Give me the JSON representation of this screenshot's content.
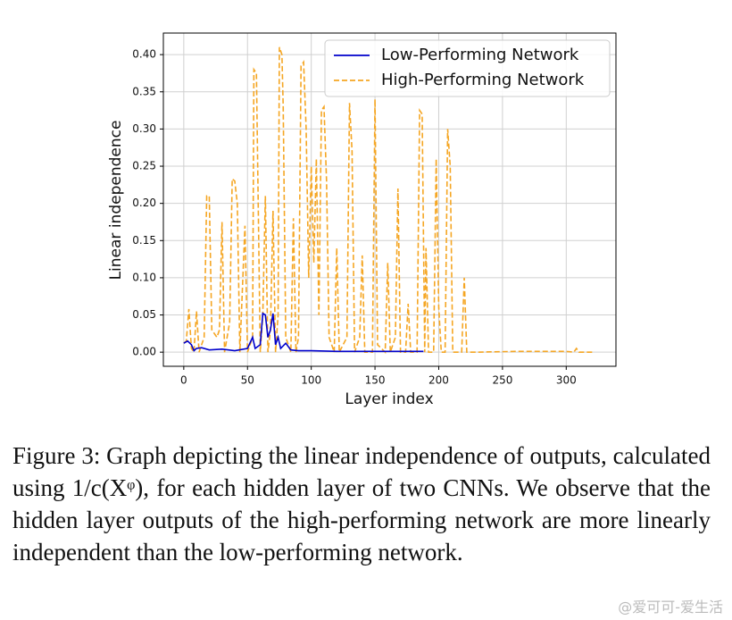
{
  "chart_data": {
    "type": "line",
    "xlabel": "Layer index",
    "ylabel": "Linear independence",
    "xlim": [
      -16,
      339
    ],
    "ylim": [
      -0.019,
      0.429
    ],
    "xticks": [
      0,
      50,
      100,
      150,
      200,
      250,
      300
    ],
    "yticks": [
      {
        "value": 0,
        "label": "0.00"
      },
      {
        "value": 0.05,
        "label": "0.05"
      },
      {
        "value": 0.1,
        "label": "0.10"
      },
      {
        "value": 0.15,
        "label": "0.15"
      },
      {
        "value": 0.2,
        "label": "0.20"
      },
      {
        "value": 0.25,
        "label": "0.25"
      },
      {
        "value": 0.3,
        "label": "0.30"
      },
      {
        "value": 0.35,
        "label": "0.35"
      },
      {
        "value": 0.4,
        "label": "0.40"
      }
    ],
    "grid": true,
    "legend": "upper right",
    "series": [
      {
        "name": "Low-Performing Network",
        "color": "#0000cc",
        "linestyle": "solid",
        "x": [
          0,
          3,
          6,
          8,
          10,
          14,
          20,
          30,
          40,
          50,
          54,
          56,
          60,
          62,
          64,
          66,
          68,
          70,
          72,
          74,
          76,
          80,
          84,
          90,
          100,
          120,
          150,
          188
        ],
        "values": [
          0.012,
          0.015,
          0.01,
          0.002,
          0.005,
          0.006,
          0.003,
          0.004,
          0.002,
          0.005,
          0.02,
          0.005,
          0.01,
          0.052,
          0.05,
          0.02,
          0.03,
          0.052,
          0.01,
          0.02,
          0.005,
          0.012,
          0.003,
          0.002,
          0.002,
          0.001,
          0.001,
          0.001
        ]
      },
      {
        "name": "High-Performing Network",
        "color": "#f5a623",
        "linestyle": "dashed",
        "x": [
          0,
          2,
          4,
          6,
          8,
          10,
          12,
          16,
          18,
          20,
          22,
          26,
          28,
          30,
          32,
          36,
          38,
          40,
          42,
          44,
          48,
          50,
          54,
          55,
          57,
          58,
          60,
          62,
          64,
          66,
          68,
          70,
          72,
          74,
          75,
          77,
          78,
          80,
          84,
          86,
          88,
          90,
          92,
          94,
          96,
          98,
          100,
          102,
          104,
          106,
          108,
          110,
          112,
          114,
          118,
          120,
          122,
          128,
          130,
          132,
          134,
          138,
          140,
          142,
          148,
          150,
          152,
          158,
          160,
          162,
          166,
          168,
          170,
          174,
          176,
          178,
          183,
          185,
          187,
          189,
          190,
          192,
          196,
          198,
          200,
          202,
          205,
          207,
          209,
          211,
          218,
          220,
          222,
          230,
          260,
          300,
          306,
          308,
          310,
          322
        ],
        "values": [
          0.012,
          0.015,
          0.058,
          0.005,
          0.0,
          0.055,
          0.0,
          0.02,
          0.21,
          0.21,
          0.03,
          0.02,
          0.03,
          0.175,
          0.0,
          0.04,
          0.233,
          0.23,
          0.2,
          0.0,
          0.17,
          0.0,
          0.02,
          0.38,
          0.375,
          0.25,
          0.0,
          0.05,
          0.21,
          0.0,
          0.03,
          0.19,
          0.0,
          0.05,
          0.41,
          0.4,
          0.33,
          0.02,
          0.0,
          0.18,
          0.0,
          0.02,
          0.385,
          0.39,
          0.3,
          0.1,
          0.25,
          0.12,
          0.26,
          0.05,
          0.325,
          0.33,
          0.23,
          0.02,
          0.0,
          0.14,
          0.0,
          0.02,
          0.335,
          0.27,
          0.0,
          0.02,
          0.13,
          0.0,
          0.0,
          0.34,
          0.01,
          0.0,
          0.12,
          0.0,
          0.02,
          0.22,
          0.0,
          0.0,
          0.065,
          0.0,
          0.0,
          0.325,
          0.32,
          0.0,
          0.14,
          0.0,
          0.0,
          0.26,
          0.06,
          0.0,
          0.0,
          0.3,
          0.25,
          0.0,
          0.0,
          0.1,
          0.0,
          0.0,
          0.001,
          0.001,
          0.0,
          0.005,
          0.0,
          0.0
        ]
      }
    ]
  },
  "caption": "Figure 3: Graph depicting the linear independence of outputs, calculated using 1/c(Xᵠ), for each hidden layer of two CNNs. We observe that the hidden layer outputs of the high-performing network are more linearly independent than the low-performing network.",
  "watermark": "@爱可可-爱生活"
}
